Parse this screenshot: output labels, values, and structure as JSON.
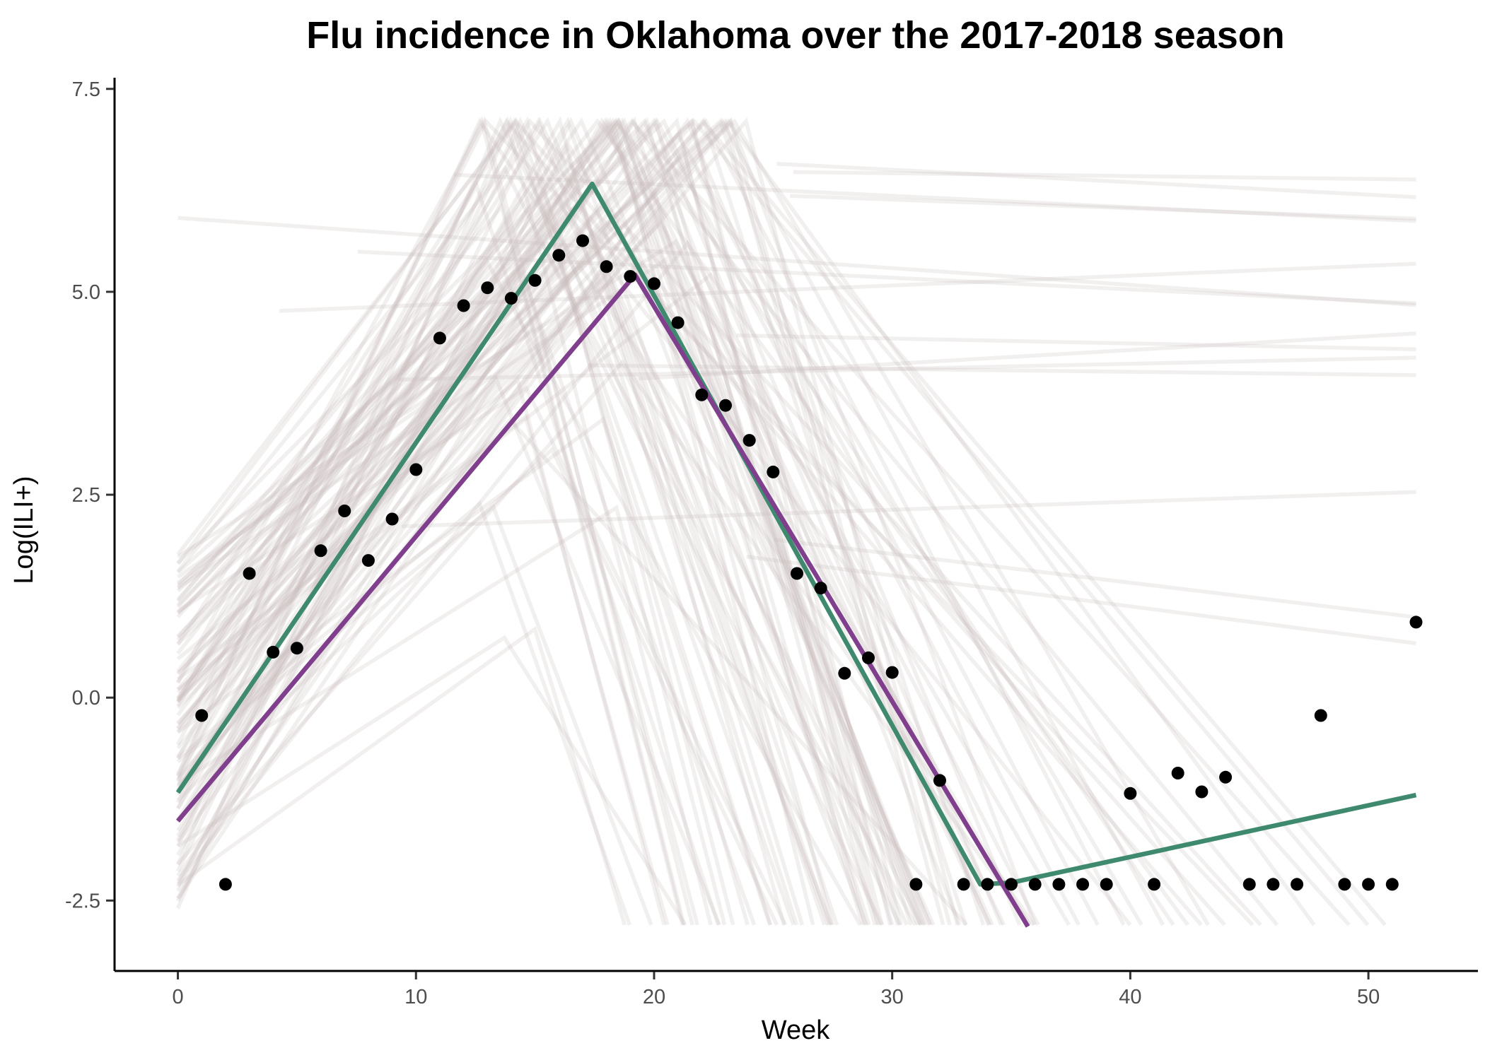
{
  "chart_data": {
    "type": "scatter",
    "title": "Flu incidence in Oklahoma over the 2017-2018 season",
    "xlabel": "Week",
    "ylabel": "Log(ILI+)",
    "xlim": [
      -2.6,
      54.6
    ],
    "ylim": [
      -3.35,
      7.62
    ],
    "x_ticks": [
      0,
      10,
      20,
      30,
      40,
      50
    ],
    "x_tick_labels": [
      "0",
      "10",
      "20",
      "30",
      "40",
      "50"
    ],
    "y_ticks": [
      -2.5,
      0,
      2.5,
      5,
      7.5
    ],
    "y_tick_labels": [
      "-2.5",
      "0.0",
      "2.5",
      "5.0",
      "7.5"
    ],
    "grid": false,
    "legend": "none",
    "colors": {
      "points": "#000000",
      "fit_green": "#3f8a6e",
      "fit_purple": "#7f3f8c",
      "background_lines": "#c8bebe",
      "axis": "#000000",
      "tick_text": "#4d4d4d"
    },
    "observed": {
      "x": [
        1,
        2,
        3,
        4,
        5,
        6,
        7,
        8,
        9,
        10,
        11,
        12,
        13,
        14,
        15,
        16,
        17,
        18,
        19,
        20,
        21,
        22,
        23,
        24,
        25,
        26,
        27,
        28,
        29,
        30,
        31,
        32,
        33,
        34,
        35,
        36,
        37,
        38,
        39,
        40,
        41,
        42,
        43,
        44,
        45,
        46,
        47,
        48,
        49,
        50,
        51,
        52
      ],
      "y": [
        -0.22,
        -2.3,
        1.53,
        0.56,
        0.61,
        1.81,
        2.3,
        1.69,
        2.2,
        2.81,
        4.43,
        4.83,
        5.05,
        4.92,
        5.14,
        5.45,
        5.63,
        5.31,
        5.19,
        5.1,
        4.62,
        3.73,
        3.6,
        3.17,
        2.78,
        1.53,
        1.35,
        0.3,
        0.49,
        0.31,
        -2.3,
        -1.02,
        -2.3,
        -2.3,
        -2.3,
        -2.3,
        -2.3,
        -2.3,
        -2.3,
        -1.18,
        -2.3,
        -0.93,
        -1.16,
        -0.98,
        -2.3,
        -2.3,
        -2.3,
        -0.22,
        -2.3,
        -2.3,
        -2.3,
        0.93
      ]
    },
    "fits": [
      {
        "color": "#3f8a6e",
        "x": [
          0,
          17.4,
          33.7,
          35,
          52
        ],
        "y": [
          -1.17,
          6.33,
          -2.3,
          -2.28,
          -1.2
        ]
      },
      {
        "color": "#7f3f8c",
        "x": [
          0,
          19.2,
          35.7
        ],
        "y": [
          -1.52,
          5.21,
          -2.82
        ]
      }
    ],
    "background_line_count": 110,
    "background_line_alpha": 0.24
  }
}
